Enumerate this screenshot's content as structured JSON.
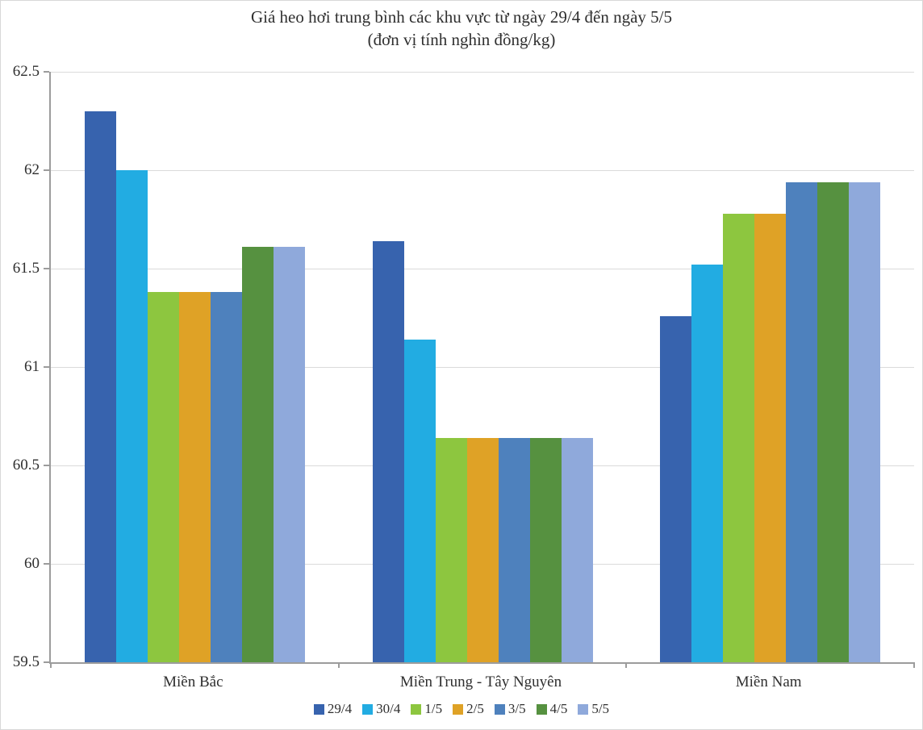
{
  "chart_data": {
    "type": "bar",
    "title": "Giá heo hơi trung bình các khu vực từ ngày 29/4 đến ngày 5/5",
    "subtitle": "(đơn vị tính nghìn đồng/kg)",
    "categories": [
      "Miền Bắc",
      "Miền Trung - Tây Nguyên",
      "Miền Nam"
    ],
    "series": [
      {
        "name": "29/4",
        "color": "#3763ae",
        "values": [
          62.3,
          61.64,
          61.26
        ]
      },
      {
        "name": "30/4",
        "color": "#22ace2",
        "values": [
          62.0,
          61.14,
          61.52
        ]
      },
      {
        "name": "1/5",
        "color": "#8dc63f",
        "values": [
          61.38,
          60.64,
          61.78
        ]
      },
      {
        "name": "2/5",
        "color": "#dfa226",
        "values": [
          61.38,
          60.64,
          61.78
        ]
      },
      {
        "name": "3/5",
        "color": "#4e81bd",
        "values": [
          61.38,
          60.64,
          61.94
        ]
      },
      {
        "name": "4/5",
        "color": "#569140",
        "values": [
          61.61,
          60.64,
          61.94
        ]
      },
      {
        "name": "5/5",
        "color": "#8fa9db",
        "values": [
          61.61,
          60.64,
          61.94
        ]
      }
    ],
    "ylim": [
      59.5,
      62.5
    ],
    "ytick_step": 0.5,
    "ytick_labels": [
      "59.5",
      "60",
      "60.5",
      "61",
      "61.5",
      "62",
      "62.5"
    ],
    "grid": true,
    "legend_position": "bottom",
    "axis_color": "#9c9c9c",
    "grid_color": "#dbdbdb"
  }
}
